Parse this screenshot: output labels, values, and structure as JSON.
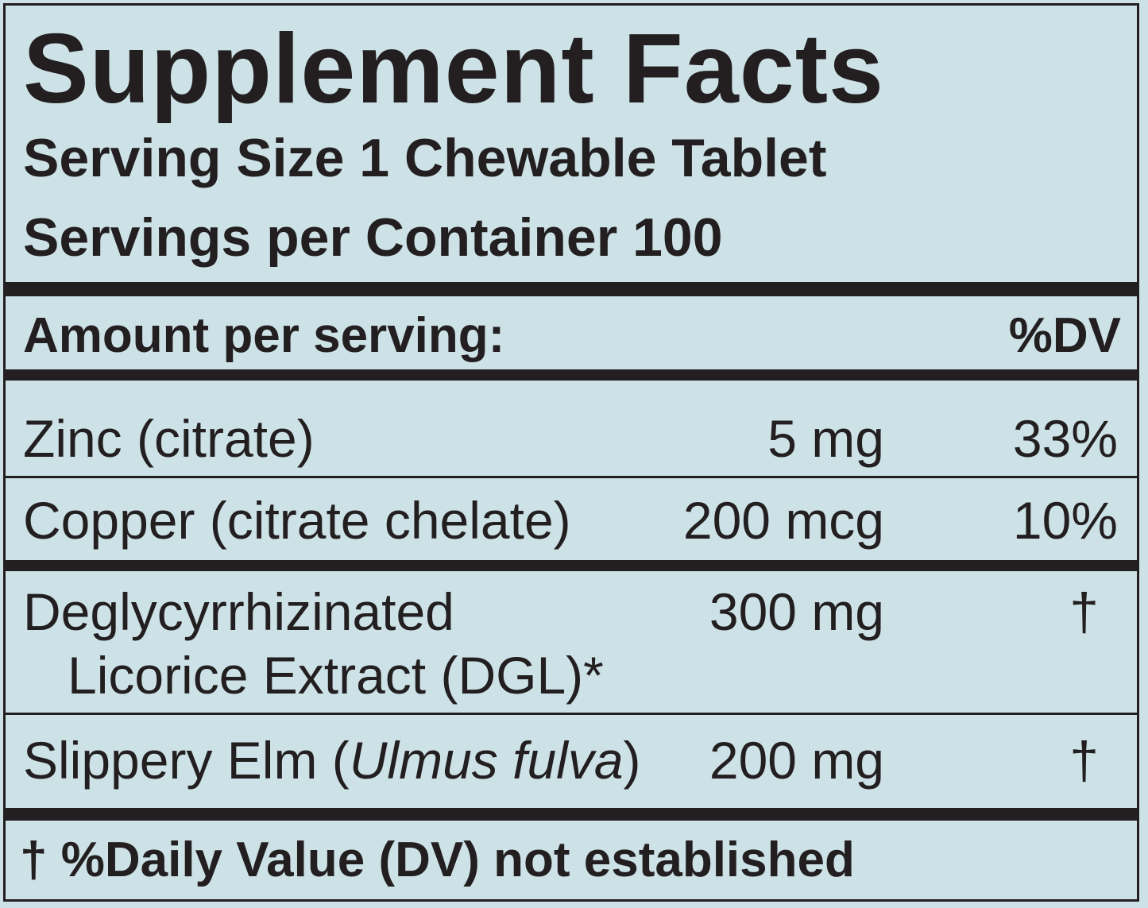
{
  "title": "Supplement Facts",
  "serving_size": "Serving Size 1 Chewable Tablet",
  "servings_per_container": "Servings per Container 100",
  "header": {
    "amount_label": "Amount per serving:",
    "dv_label": "%DV"
  },
  "nutrients": [
    {
      "name": "Zinc (citrate)",
      "amount": "5 mg",
      "dv": "33%"
    },
    {
      "name": "Copper (citrate chelate)",
      "amount": "200 mcg",
      "dv": "10%"
    }
  ],
  "botanicals": [
    {
      "name_line1": "Deglycyrrhizinated",
      "name_line2": "Licorice Extract (DGL)*",
      "amount": "300 mg",
      "dv": "†"
    },
    {
      "name": "Slippery Elm (",
      "latin": "Ulmus fulva",
      "name_close": ")",
      "amount": "200 mg",
      "dv": "†"
    }
  ],
  "footnote": "† %Daily Value (DV) not established"
}
